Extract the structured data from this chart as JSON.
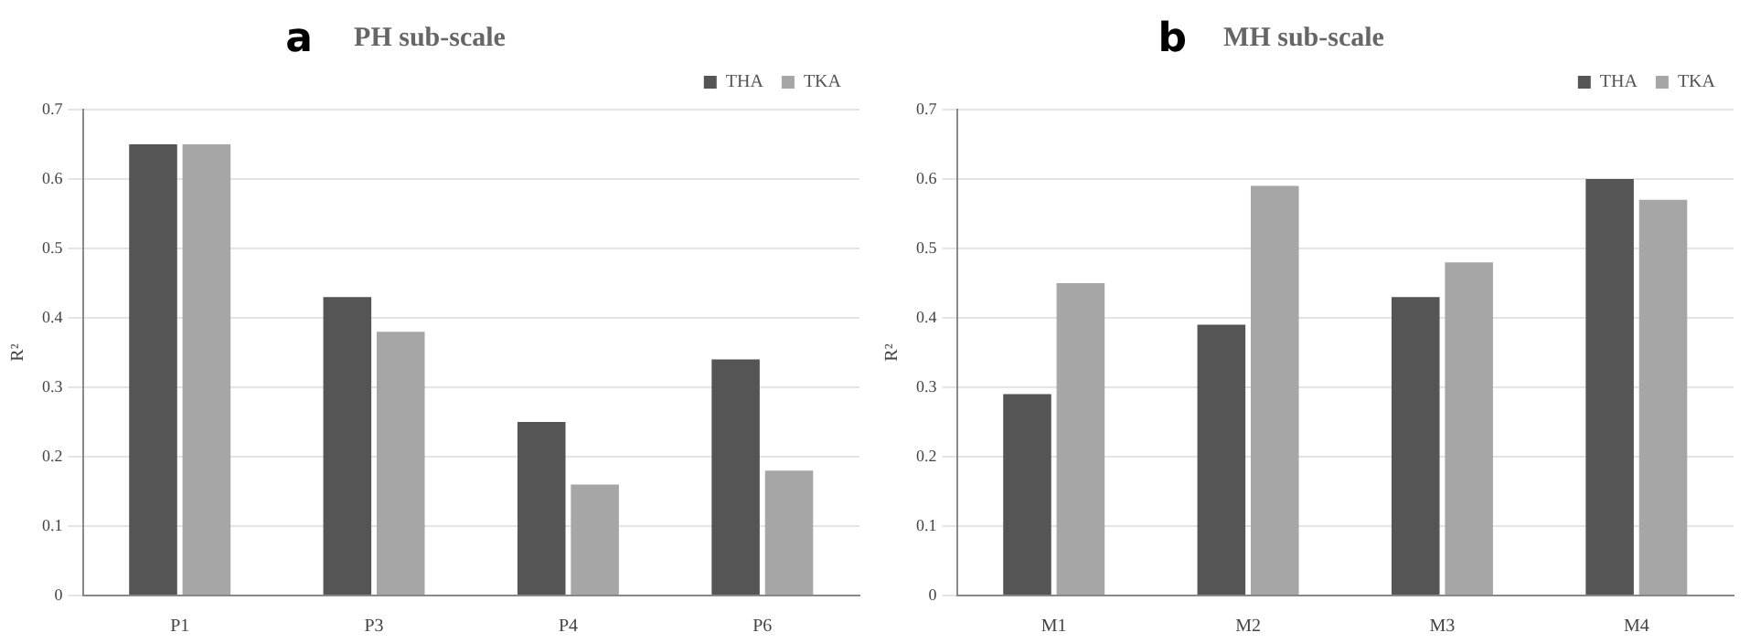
{
  "chart_data": [
    {
      "type": "bar",
      "title": "PH sub-scale",
      "annotations": [
        "a"
      ],
      "ylabel": "R²",
      "categories": [
        "P1",
        "P3",
        "P4",
        "P6"
      ],
      "series": [
        {
          "name": "THA",
          "color": "#555555",
          "values": [
            0.65,
            0.43,
            0.25,
            0.34
          ]
        },
        {
          "name": "TKA",
          "color": "#a6a6a6",
          "values": [
            0.65,
            0.38,
            0.16,
            0.18
          ]
        }
      ],
      "ylim": [
        0,
        0.7
      ],
      "yticks": [
        0,
        0.1,
        0.2,
        0.3,
        0.4,
        0.5,
        0.6,
        0.7
      ],
      "grid": "y",
      "legend": "top right"
    },
    {
      "type": "bar",
      "title": "MH sub-scale",
      "annotations": [
        "b"
      ],
      "ylabel": "R²",
      "categories": [
        "M1",
        "M2",
        "M3",
        "M4"
      ],
      "series": [
        {
          "name": "THA",
          "color": "#555555",
          "values": [
            0.29,
            0.39,
            0.43,
            0.6
          ]
        },
        {
          "name": "TKA",
          "color": "#a6a6a6",
          "values": [
            0.45,
            0.59,
            0.48,
            0.57
          ]
        }
      ],
      "ylim": [
        0,
        0.7
      ],
      "yticks": [
        0,
        0.1,
        0.2,
        0.3,
        0.4,
        0.5,
        0.6,
        0.7
      ],
      "grid": "y",
      "legend": "top right"
    }
  ]
}
